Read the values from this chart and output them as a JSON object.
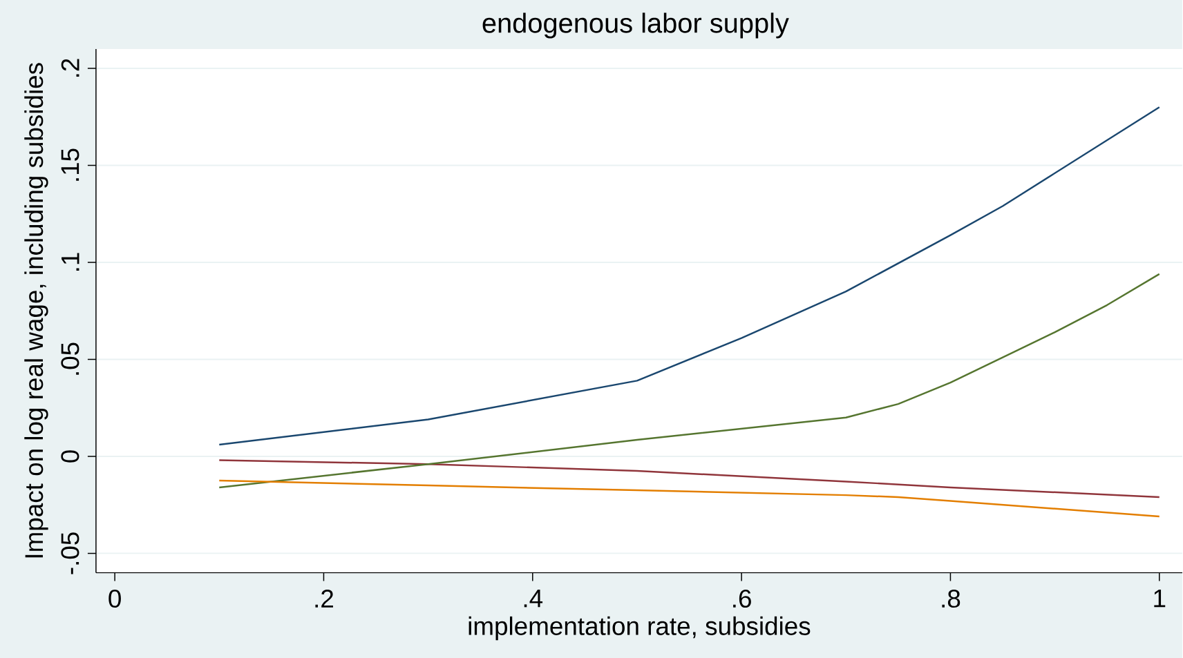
{
  "chart_data": {
    "type": "line",
    "title": "endogenous labor supply",
    "xlabel": "implementation rate, subsidies",
    "ylabel": "Impact on log real wage, including subsidies",
    "xlim": [
      -0.018,
      1.022
    ],
    "ylim": [
      -0.06,
      0.21
    ],
    "xticks": [
      0,
      {
        "value": 0.2,
        "label": ".2"
      },
      {
        "value": 0.4,
        "label": ".4"
      },
      {
        "value": 0.6,
        "label": ".6"
      },
      {
        "value": 0.8,
        "label": ".8"
      },
      1
    ],
    "yticks": [
      {
        "value": -0.05,
        "label": "-.05"
      },
      0,
      {
        "value": 0.05,
        "label": ".05"
      },
      {
        "value": 0.1,
        "label": ".1"
      },
      {
        "value": 0.15,
        "label": ".15"
      },
      {
        "value": 0.2,
        "label": ".2"
      }
    ],
    "grid": "y",
    "line_style": "solid",
    "marker": "none",
    "series": [
      {
        "color": "#1a476f",
        "x": [
          0.1,
          0.3,
          0.5,
          0.6,
          0.7,
          0.8,
          0.85,
          0.9,
          0.95,
          1
        ],
        "values": [
          0.006,
          0.019,
          0.039,
          0.061,
          0.085,
          0.114,
          0.129,
          0.146,
          0.163,
          0.18
        ]
      },
      {
        "color": "#90353b",
        "x": [
          0.1,
          0.3,
          0.5,
          0.7,
          0.8,
          1
        ],
        "values": [
          -0.002,
          -0.004,
          -0.0075,
          -0.013,
          -0.016,
          -0.021
        ]
      },
      {
        "color": "#55752f",
        "x": [
          0.1,
          0.3,
          0.5,
          0.7,
          0.75,
          0.8,
          0.9,
          0.95,
          1
        ],
        "values": [
          -0.016,
          -0.004,
          0.0085,
          0.02,
          0.027,
          0.038,
          0.064,
          0.078,
          0.094
        ]
      },
      {
        "color": "#e37e00",
        "x": [
          0.1,
          0.3,
          0.5,
          0.7,
          0.75,
          0.8,
          1
        ],
        "values": [
          -0.0125,
          -0.015,
          -0.0175,
          -0.02,
          -0.021,
          -0.023,
          -0.031
        ]
      }
    ]
  }
}
